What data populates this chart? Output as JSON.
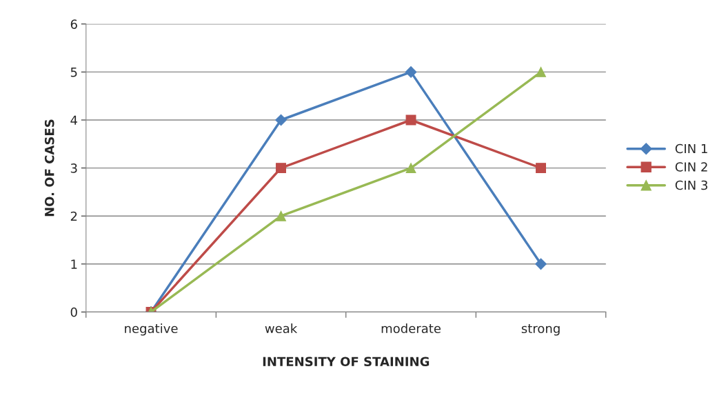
{
  "chart_data": {
    "type": "line",
    "xlabel": "INTENSITY OF STAINING",
    "ylabel": "NO. OF CASES",
    "categories": [
      "negative",
      "weak",
      "moderate",
      "strong"
    ],
    "series": [
      {
        "name": "CIN 1",
        "color": "#4a7ebb",
        "marker": "diamond",
        "values": [
          0,
          4,
          5,
          1
        ]
      },
      {
        "name": "CIN 2",
        "color": "#be4b48",
        "marker": "square",
        "values": [
          0,
          3,
          4,
          3
        ]
      },
      {
        "name": "CIN 3",
        "color": "#98b954",
        "marker": "triangle",
        "values": [
          0,
          2,
          3,
          5
        ]
      }
    ],
    "ylim": [
      0,
      6
    ],
    "yticks": [
      0,
      1,
      2,
      3,
      4,
      5,
      6
    ],
    "grid": "y",
    "legend": "right",
    "line_style": "solid"
  }
}
